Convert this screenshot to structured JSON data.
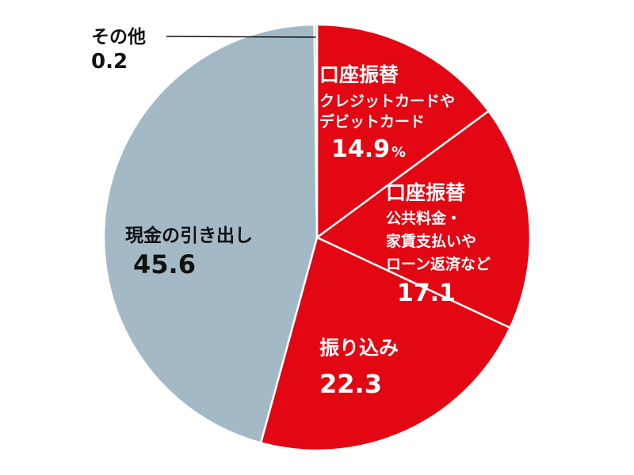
{
  "chart_data": {
    "type": "pie",
    "start_angle_deg": 0,
    "direction": "clockwise",
    "slices": [
      {
        "name_lines": [
          "口座振替"
        ],
        "detail_lines": [
          "クレジットカードや",
          "デビットカード"
        ],
        "value": 14.9,
        "value_label": "14.9",
        "unit": "%",
        "color": "#e30613"
      },
      {
        "name_lines": [
          "口座振替"
        ],
        "detail_lines": [
          "公共料金・",
          "家賃支払いや",
          "ローン返済など"
        ],
        "value": 17.1,
        "value_label": "17.1",
        "unit": "",
        "color": "#e30613"
      },
      {
        "name_lines": [
          "振り込み"
        ],
        "detail_lines": [],
        "value": 22.3,
        "value_label": "22.3",
        "unit": "",
        "color": "#e30613"
      },
      {
        "name_lines": [
          "現金の引き出し"
        ],
        "detail_lines": [],
        "value": 45.6,
        "value_label": "45.6",
        "unit": "",
        "color": "#a3b9c6"
      },
      {
        "name_lines": [
          "その他"
        ],
        "detail_lines": [],
        "value": 0.2,
        "value_label": "0.2",
        "unit": "",
        "color": "#a3b9c6"
      }
    ],
    "slice_border_color": "#ffffff",
    "title": "",
    "legend": "none"
  }
}
